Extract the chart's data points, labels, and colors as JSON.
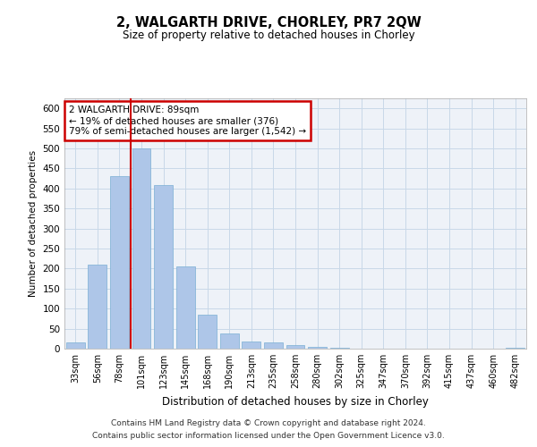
{
  "title": "2, WALGARTH DRIVE, CHORLEY, PR7 2QW",
  "subtitle": "Size of property relative to detached houses in Chorley",
  "xlabel": "Distribution of detached houses by size in Chorley",
  "ylabel": "Number of detached properties",
  "categories": [
    "33sqm",
    "56sqm",
    "78sqm",
    "101sqm",
    "123sqm",
    "145sqm",
    "168sqm",
    "190sqm",
    "213sqm",
    "235sqm",
    "258sqm",
    "280sqm",
    "302sqm",
    "325sqm",
    "347sqm",
    "370sqm",
    "392sqm",
    "415sqm",
    "437sqm",
    "460sqm",
    "482sqm"
  ],
  "values": [
    15,
    210,
    430,
    500,
    408,
    205,
    85,
    37,
    18,
    15,
    10,
    4,
    2,
    1,
    1,
    1,
    0,
    0,
    0,
    0,
    3
  ],
  "bar_color": "#aec6e8",
  "bar_edge_color": "#7aafd4",
  "grid_color": "#c8d8e8",
  "background_color": "#eef2f8",
  "annotation_box_text": [
    "2 WALGARTH DRIVE: 89sqm",
    "← 19% of detached houses are smaller (376)",
    "79% of semi-detached houses are larger (1,542) →"
  ],
  "annotation_box_color": "#cc0000",
  "red_line_x": 2.5,
  "ylim": [
    0,
    625
  ],
  "yticks": [
    0,
    50,
    100,
    150,
    200,
    250,
    300,
    350,
    400,
    450,
    500,
    550,
    600
  ],
  "footer_line1": "Contains HM Land Registry data © Crown copyright and database right 2024.",
  "footer_line2": "Contains public sector information licensed under the Open Government Licence v3.0."
}
